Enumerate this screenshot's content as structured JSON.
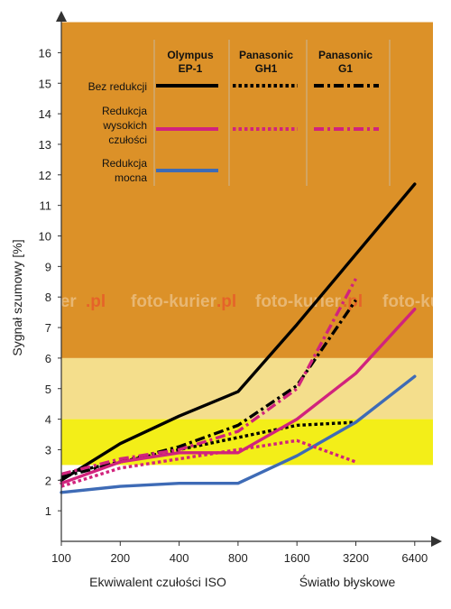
{
  "chart_data": {
    "type": "line",
    "categories": [
      "100",
      "200",
      "400",
      "800",
      "1600",
      "3200",
      "6400"
    ],
    "x_scale": "log2",
    "xlabel": "Ekwiwalent czułości ISO",
    "xlabel_secondary": "Światło błyskowe",
    "ylabel": "Sygnał szumowy [%]",
    "ylim": [
      0,
      17
    ],
    "yticks": [
      "1",
      "2",
      "3",
      "4",
      "5",
      "6",
      "7",
      "8",
      "9",
      "10",
      "11",
      "12",
      "13",
      "14",
      "15",
      "16"
    ],
    "bands": [
      {
        "from": 6,
        "to": 17,
        "color": "#dc9128"
      },
      {
        "from": 4,
        "to": 6,
        "color": "#f4de8c"
      },
      {
        "from": 2.5,
        "to": 4,
        "color": "#f3ee18"
      }
    ],
    "series": [
      {
        "camera": "Olympus EP-1",
        "mode": "Bez redukcji",
        "color": "#000000",
        "dash": "solid",
        "x": [
          100,
          200,
          400,
          800,
          1600,
          3200,
          6400
        ],
        "values": [
          2.0,
          3.2,
          4.1,
          4.9,
          7.1,
          9.4,
          11.7
        ]
      },
      {
        "camera": "Panasonic GH1",
        "mode": "Bez redukcji",
        "color": "#000000",
        "dash": "dot",
        "x": [
          100,
          200,
          400,
          800,
          1600,
          3200
        ],
        "values": [
          2.2,
          2.6,
          3.0,
          3.4,
          3.8,
          3.9
        ]
      },
      {
        "camera": "Panasonic G1",
        "mode": "Bez redukcji",
        "color": "#000000",
        "dash": "dashdot",
        "x": [
          100,
          200,
          400,
          800,
          1600,
          3200
        ],
        "values": [
          2.1,
          2.6,
          3.1,
          3.8,
          5.1,
          7.9
        ]
      },
      {
        "camera": "Olympus EP-1",
        "mode": "Redukcja wysokich czułości",
        "color": "#d1237d",
        "dash": "solid",
        "x": [
          100,
          200,
          400,
          800,
          1600,
          3200,
          6400
        ],
        "values": [
          1.9,
          2.6,
          2.9,
          2.9,
          4.0,
          5.5,
          7.6
        ]
      },
      {
        "camera": "Panasonic GH1",
        "mode": "Redukcja wysokich czułości",
        "color": "#d1237d",
        "dash": "dot",
        "x": [
          100,
          200,
          400,
          800,
          1600,
          3200
        ],
        "values": [
          1.8,
          2.4,
          2.7,
          3.0,
          3.3,
          2.6
        ]
      },
      {
        "camera": "Panasonic G1",
        "mode": "Redukcja wysokich czułości",
        "color": "#d1237d",
        "dash": "dashdot",
        "x": [
          100,
          200,
          400,
          800,
          1600,
          3200
        ],
        "values": [
          2.2,
          2.7,
          3.0,
          3.6,
          5.0,
          8.6
        ]
      },
      {
        "camera": "Olympus EP-1",
        "mode": "Redukcja mocna",
        "color": "#3e6bb6",
        "dash": "solid",
        "x": [
          100,
          200,
          400,
          800,
          1600,
          3200,
          6400
        ],
        "values": [
          1.6,
          1.8,
          1.9,
          1.9,
          2.8,
          3.9,
          5.4
        ]
      }
    ],
    "legend": {
      "placement": "top-left",
      "columns": [
        "Olympus EP-1",
        "Panasonic GH1",
        "Panasonic G1"
      ],
      "rows": [
        "Bez redukcji",
        "Redukcja wysokich czułości",
        "Redukcja mocna"
      ]
    }
  },
  "legend_text": {
    "col1_l1": "Olympus",
    "col1_l2": "EP-1",
    "col2_l1": "Panasonic",
    "col2_l2": "GH1",
    "col3_l1": "Panasonic",
    "col3_l2": "G1",
    "row1": "Bez redukcji",
    "row2_l1": "Redukcja",
    "row2_l2": "wysokich",
    "row2_l3": "czułości",
    "row3_l1": "Redukcja",
    "row3_l2": "mocna"
  },
  "watermark": {
    "segments": [
      "oto-kurier",
      "foto-kurier",
      "foto-kurier",
      "foto-kurier"
    ],
    "suffix": ".pl"
  }
}
